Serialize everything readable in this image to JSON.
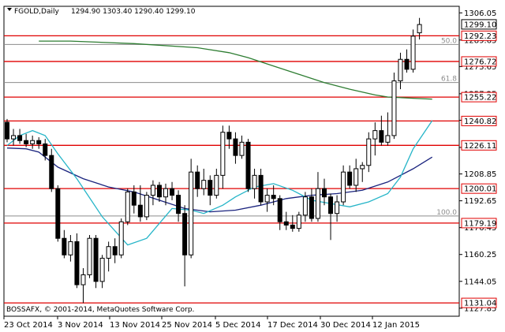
{
  "header": {
    "symbol": "FGOLD,Daily",
    "ohlc": "1294.90 1303.40 1290.40 1299.10"
  },
  "watermark": "BOSSAFX, © 2001-2014, MetaQuotes Software Corp.",
  "colors": {
    "candle": "#000000",
    "sr_line": "#e00000",
    "ma_long": "#2e7d32",
    "ma_mid": "#1a237e",
    "ma_short": "#26b5c8",
    "fib_line": "#8c8c8c",
    "price_box_bg": "#ffffff",
    "current_box_bg": "#ffffff"
  },
  "chart_data": {
    "type": "candlestick",
    "title": "FGOLD,Daily",
    "y_axis": {
      "ylim": [
        1123.0,
        1310.0
      ],
      "ticks": [
        1306.05,
        1289.65,
        1273.65,
        1257.25,
        1241.25,
        1224.85,
        1208.85,
        1192.65,
        1176.45,
        1160.25,
        1144.05,
        1127.85
      ]
    },
    "x_axis": {
      "labels": [
        "23 Oct 2014",
        "3 Nov 2014",
        "13 Nov 2014",
        "25 Nov 2014",
        "5 Dec 2014",
        "17 Dec 2014",
        "30 Dec 2014",
        "12 Jan 2015"
      ]
    },
    "current_price": "1299.10",
    "support_resistance": [
      {
        "label": "1292.23",
        "value": 1292.23
      },
      {
        "label": "1276.72",
        "value": 1276.72
      },
      {
        "label": "1255.22",
        "value": 1255.22
      },
      {
        "label": "1240.82",
        "value": 1240.82
      },
      {
        "label": "1226.11",
        "value": 1226.11
      },
      {
        "label": "1200.01",
        "value": 1200.01
      },
      {
        "label": "1179.19",
        "value": 1179.19
      },
      {
        "label": "1131.04",
        "value": 1131.04
      }
    ],
    "fib_levels": [
      {
        "label": "50.0",
        "value": 1287.0
      },
      {
        "label": "61.8",
        "value": 1264.0
      },
      {
        "label": "100.0",
        "value": 1183.5
      }
    ],
    "candles": [
      {
        "o": 1240,
        "h": 1242,
        "l": 1228,
        "c": 1230
      },
      {
        "o": 1230,
        "h": 1236,
        "l": 1226,
        "c": 1232
      },
      {
        "o": 1232,
        "h": 1236,
        "l": 1227,
        "c": 1229
      },
      {
        "o": 1229,
        "h": 1233,
        "l": 1225,
        "c": 1227
      },
      {
        "o": 1227,
        "h": 1232,
        "l": 1224,
        "c": 1229
      },
      {
        "o": 1229,
        "h": 1231,
        "l": 1224,
        "c": 1227
      },
      {
        "o": 1227,
        "h": 1230,
        "l": 1217,
        "c": 1220
      },
      {
        "o": 1220,
        "h": 1224,
        "l": 1198,
        "c": 1200
      },
      {
        "o": 1200,
        "h": 1202,
        "l": 1168,
        "c": 1170
      },
      {
        "o": 1170,
        "h": 1175,
        "l": 1158,
        "c": 1160
      },
      {
        "o": 1160,
        "h": 1172,
        "l": 1156,
        "c": 1168
      },
      {
        "o": 1168,
        "h": 1173,
        "l": 1140,
        "c": 1142
      },
      {
        "o": 1142,
        "h": 1152,
        "l": 1131,
        "c": 1148
      },
      {
        "o": 1148,
        "h": 1172,
        "l": 1146,
        "c": 1170
      },
      {
        "o": 1170,
        "h": 1172,
        "l": 1140,
        "c": 1144
      },
      {
        "o": 1144,
        "h": 1160,
        "l": 1140,
        "c": 1158
      },
      {
        "o": 1158,
        "h": 1168,
        "l": 1150,
        "c": 1165
      },
      {
        "o": 1165,
        "h": 1170,
        "l": 1155,
        "c": 1160
      },
      {
        "o": 1160,
        "h": 1182,
        "l": 1158,
        "c": 1180
      },
      {
        "o": 1180,
        "h": 1200,
        "l": 1178,
        "c": 1198
      },
      {
        "o": 1198,
        "h": 1202,
        "l": 1185,
        "c": 1190
      },
      {
        "o": 1190,
        "h": 1202,
        "l": 1180,
        "c": 1183
      },
      {
        "o": 1183,
        "h": 1198,
        "l": 1181,
        "c": 1196
      },
      {
        "o": 1196,
        "h": 1205,
        "l": 1190,
        "c": 1202
      },
      {
        "o": 1202,
        "h": 1204,
        "l": 1192,
        "c": 1195
      },
      {
        "o": 1195,
        "h": 1203,
        "l": 1190,
        "c": 1200
      },
      {
        "o": 1200,
        "h": 1204,
        "l": 1193,
        "c": 1196
      },
      {
        "o": 1196,
        "h": 1199,
        "l": 1180,
        "c": 1185
      },
      {
        "o": 1185,
        "h": 1190,
        "l": 1141,
        "c": 1160
      },
      {
        "o": 1160,
        "h": 1218,
        "l": 1158,
        "c": 1210
      },
      {
        "o": 1210,
        "h": 1214,
        "l": 1195,
        "c": 1200
      },
      {
        "o": 1200,
        "h": 1212,
        "l": 1196,
        "c": 1205
      },
      {
        "o": 1205,
        "h": 1208,
        "l": 1190,
        "c": 1196
      },
      {
        "o": 1196,
        "h": 1212,
        "l": 1194,
        "c": 1208
      },
      {
        "o": 1208,
        "h": 1238,
        "l": 1200,
        "c": 1234
      },
      {
        "o": 1234,
        "h": 1238,
        "l": 1224,
        "c": 1230
      },
      {
        "o": 1230,
        "h": 1234,
        "l": 1215,
        "c": 1220
      },
      {
        "o": 1220,
        "h": 1232,
        "l": 1218,
        "c": 1228
      },
      {
        "o": 1228,
        "h": 1230,
        "l": 1198,
        "c": 1200
      },
      {
        "o": 1200,
        "h": 1212,
        "l": 1194,
        "c": 1208
      },
      {
        "o": 1208,
        "h": 1212,
        "l": 1190,
        "c": 1192
      },
      {
        "o": 1192,
        "h": 1200,
        "l": 1186,
        "c": 1196
      },
      {
        "o": 1196,
        "h": 1202,
        "l": 1190,
        "c": 1194
      },
      {
        "o": 1194,
        "h": 1196,
        "l": 1175,
        "c": 1180
      },
      {
        "o": 1180,
        "h": 1186,
        "l": 1175,
        "c": 1178
      },
      {
        "o": 1178,
        "h": 1184,
        "l": 1174,
        "c": 1176
      },
      {
        "o": 1176,
        "h": 1186,
        "l": 1174,
        "c": 1184
      },
      {
        "o": 1184,
        "h": 1198,
        "l": 1180,
        "c": 1195
      },
      {
        "o": 1195,
        "h": 1200,
        "l": 1180,
        "c": 1182
      },
      {
        "o": 1182,
        "h": 1210,
        "l": 1180,
        "c": 1200
      },
      {
        "o": 1200,
        "h": 1206,
        "l": 1190,
        "c": 1195
      },
      {
        "o": 1195,
        "h": 1197,
        "l": 1169,
        "c": 1185
      },
      {
        "o": 1185,
        "h": 1196,
        "l": 1180,
        "c": 1192
      },
      {
        "o": 1192,
        "h": 1214,
        "l": 1190,
        "c": 1210
      },
      {
        "o": 1210,
        "h": 1214,
        "l": 1200,
        "c": 1202
      },
      {
        "o": 1202,
        "h": 1218,
        "l": 1198,
        "c": 1212
      },
      {
        "o": 1212,
        "h": 1216,
        "l": 1204,
        "c": 1214
      },
      {
        "o": 1214,
        "h": 1234,
        "l": 1210,
        "c": 1230
      },
      {
        "o": 1230,
        "h": 1240,
        "l": 1220,
        "c": 1235
      },
      {
        "o": 1235,
        "h": 1244,
        "l": 1226,
        "c": 1228
      },
      {
        "o": 1228,
        "h": 1246,
        "l": 1226,
        "c": 1232
      },
      {
        "o": 1232,
        "h": 1270,
        "l": 1230,
        "c": 1265
      },
      {
        "o": 1265,
        "h": 1282,
        "l": 1260,
        "c": 1278
      },
      {
        "o": 1278,
        "h": 1284,
        "l": 1270,
        "c": 1272
      },
      {
        "o": 1272,
        "h": 1296,
        "l": 1270,
        "c": 1292
      },
      {
        "o": 1294,
        "h": 1303,
        "l": 1290,
        "c": 1299
      }
    ],
    "moving_averages": [
      {
        "name": "MA long",
        "color": "#2e7d32",
        "points": [
          [
            5,
            1289
          ],
          [
            10,
            1289
          ],
          [
            20,
            1287.5
          ],
          [
            30,
            1285
          ],
          [
            35,
            1282
          ],
          [
            38,
            1279
          ],
          [
            42,
            1274
          ],
          [
            46,
            1269
          ],
          [
            50,
            1264
          ],
          [
            54,
            1260
          ],
          [
            58,
            1256.5
          ],
          [
            60,
            1255.3
          ],
          [
            64,
            1254.5
          ],
          [
            67,
            1254
          ]
        ]
      },
      {
        "name": "MA mid",
        "color": "#1a237e",
        "points": [
          [
            0,
            1224.5
          ],
          [
            3,
            1224
          ],
          [
            5,
            1222
          ],
          [
            8,
            1213
          ],
          [
            12,
            1206
          ],
          [
            16,
            1201
          ],
          [
            20,
            1198
          ],
          [
            24,
            1193
          ],
          [
            28,
            1188
          ],
          [
            32,
            1186
          ],
          [
            36,
            1187
          ],
          [
            40,
            1190
          ],
          [
            44,
            1194
          ],
          [
            48,
            1196
          ],
          [
            52,
            1197
          ],
          [
            56,
            1199
          ],
          [
            60,
            1204
          ],
          [
            64,
            1212
          ],
          [
            67,
            1219
          ]
        ]
      },
      {
        "name": "MA short",
        "color": "#26b5c8",
        "points": [
          [
            0,
            1226
          ],
          [
            2,
            1232
          ],
          [
            4,
            1235
          ],
          [
            6,
            1232
          ],
          [
            8,
            1221
          ],
          [
            11,
            1206
          ],
          [
            15,
            1183
          ],
          [
            19,
            1166
          ],
          [
            22,
            1170
          ],
          [
            26,
            1188
          ],
          [
            29,
            1187
          ],
          [
            31,
            1185
          ],
          [
            34,
            1190
          ],
          [
            36,
            1195
          ],
          [
            39,
            1201
          ],
          [
            42,
            1203
          ],
          [
            45,
            1199
          ],
          [
            48,
            1193
          ],
          [
            51,
            1191
          ],
          [
            54,
            1189
          ],
          [
            57,
            1192
          ],
          [
            60,
            1197
          ],
          [
            62,
            1207
          ],
          [
            64,
            1224
          ],
          [
            67,
            1241
          ]
        ]
      }
    ]
  }
}
